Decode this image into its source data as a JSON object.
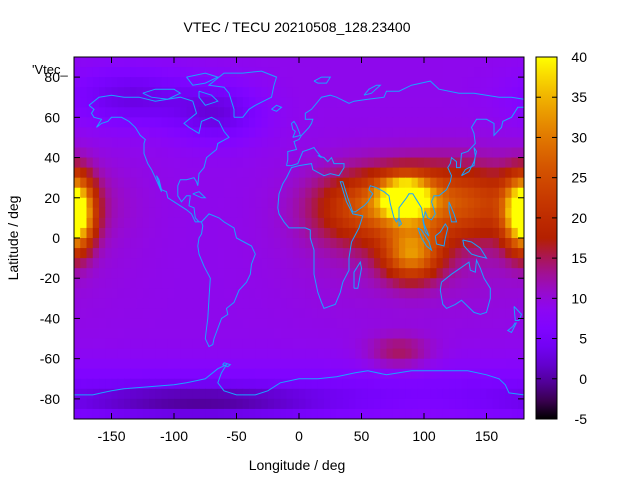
{
  "chart_data": {
    "type": "heatmap",
    "title": "VTEC / TECU 20210508_128.23400",
    "xlabel": "Longitude / deg",
    "ylabel": "Latitude / deg",
    "key_label": "'Vtec_",
    "xlim": [
      -180,
      180
    ],
    "ylim": [
      -90,
      90
    ],
    "x_ticks": [
      -150,
      -100,
      -50,
      0,
      50,
      100,
      150
    ],
    "y_ticks": [
      -80,
      -60,
      -40,
      -20,
      0,
      20,
      40,
      60,
      80
    ],
    "colorbar": {
      "range": [
        -5,
        40
      ],
      "ticks": [
        -5,
        0,
        5,
        10,
        15,
        20,
        25,
        30,
        35,
        40
      ],
      "palette": "gnuplot-pm3d-black-purple-red-orange-yellow"
    },
    "background_value": 9,
    "features": [
      {
        "name": "equatorial-anomaly-asia-north",
        "lon": 85,
        "lat": 20,
        "value": 38
      },
      {
        "name": "equatorial-belt-asia",
        "lon": 120,
        "lat": 18,
        "value": 24
      },
      {
        "name": "equatorial-anomaly-asia-south",
        "lon": 90,
        "lat": -8,
        "value": 28
      },
      {
        "name": "equatorial-belt-africa",
        "lon": 50,
        "lat": 15,
        "value": 20
      },
      {
        "name": "dateline-enhancement-west",
        "lon": -178,
        "lat": 12,
        "value": 30
      },
      {
        "name": "dateline-enhancement-east",
        "lon": 178,
        "lat": 12,
        "value": 26
      },
      {
        "name": "southern-ocean-patch",
        "lon": 80,
        "lat": -57,
        "value": 15
      },
      {
        "name": "north-pacific-depletion",
        "lon": -135,
        "lat": 70,
        "value": 3
      },
      {
        "name": "north-america-depletion",
        "lon": -65,
        "lat": 62,
        "value": 3
      },
      {
        "name": "antarctic-depletion",
        "lon": -80,
        "lat": -82,
        "value": 2
      }
    ],
    "overlay": "coastlines"
  }
}
